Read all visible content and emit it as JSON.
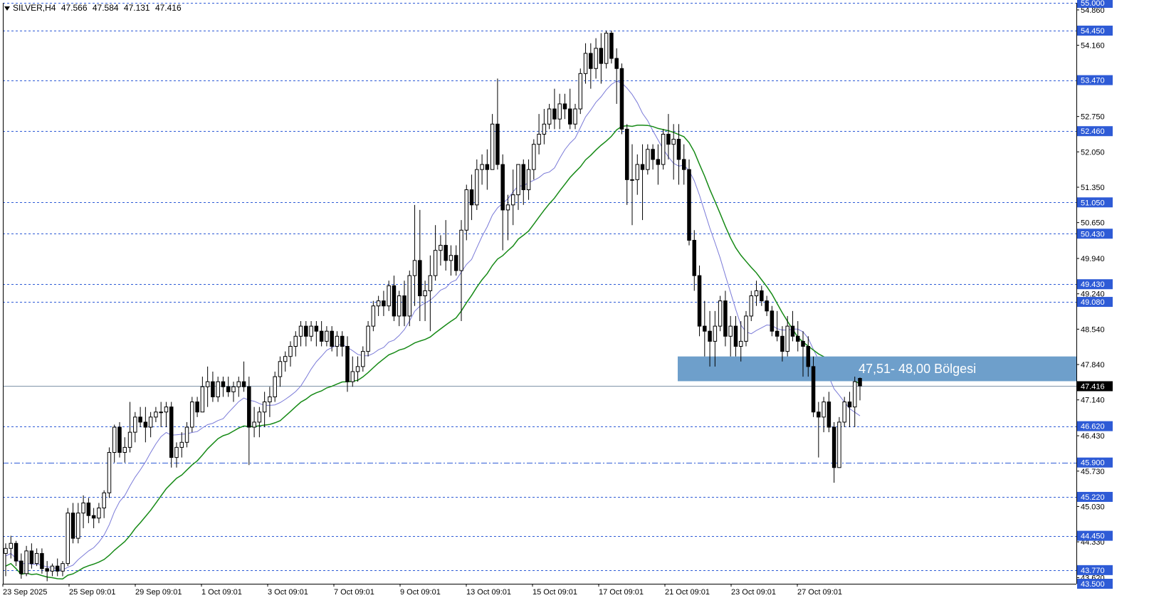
{
  "header": {
    "symbol": "SILVER,H4",
    "open": "47.566",
    "high": "47.584",
    "low": "47.131",
    "close": "47.416"
  },
  "colors": {
    "grid": "#2e5bd6",
    "axis_line": "#000000",
    "candle_up_fill": "#ffffff",
    "candle_down_fill": "#000000",
    "ma_fast": "#7b7bd8",
    "ma_slow": "#168a16",
    "zone_fill": "#6e9fcb",
    "zone_text": "#ffffff",
    "level_label_bg": "#2e5bd6",
    "price_label_bg": "#000000"
  },
  "chart_data": {
    "type": "candlestick",
    "symbol": "SILVER",
    "timeframe": "H4",
    "ylim": [
      43.5,
      55.0
    ],
    "y_ticks": [
      "54.860",
      "54.160",
      "53.470",
      "52.750",
      "52.050",
      "51.350",
      "50.650",
      "49.940",
      "49.240",
      "48.540",
      "47.840",
      "47.140",
      "46.430",
      "45.730",
      "45.030",
      "44.330",
      "43.620"
    ],
    "x_ticks": [
      "23 Sep 2025",
      "25 Sep 09:01",
      "29 Sep 09:01",
      "1 Oct 09:01",
      "3 Oct 09:01",
      "7 Oct 09:01",
      "9 Oct 09:01",
      "13 Oct 09:01",
      "15 Oct 09:01",
      "17 Oct 09:01",
      "21 Oct 09:01",
      "23 Oct 09:01",
      "27 Oct 09:01"
    ],
    "horizontal_levels": [
      {
        "value": 55.0,
        "label": "55.000",
        "style": "dashed"
      },
      {
        "value": 54.45,
        "label": "54.450",
        "style": "dashed"
      },
      {
        "value": 53.47,
        "label": "53.470",
        "style": "dashed"
      },
      {
        "value": 52.46,
        "label": "52.460",
        "style": "dashed"
      },
      {
        "value": 51.05,
        "label": "51.050",
        "style": "dashed"
      },
      {
        "value": 50.43,
        "label": "50.430",
        "style": "dashed"
      },
      {
        "value": 49.43,
        "label": "49.430",
        "style": "dashed"
      },
      {
        "value": 49.08,
        "label": "49.080",
        "style": "dashed"
      },
      {
        "value": 46.62,
        "label": "46.620",
        "style": "dashed"
      },
      {
        "value": 45.9,
        "label": "45.900",
        "style": "dashdot"
      },
      {
        "value": 45.22,
        "label": "45.220",
        "style": "dashed"
      },
      {
        "value": 44.45,
        "label": "44.450",
        "style": "dashed"
      },
      {
        "value": 43.77,
        "label": "43.770",
        "style": "dashed"
      },
      {
        "value": 43.5,
        "label": "43.500",
        "style": "dashed"
      }
    ],
    "current_price": {
      "value": 47.416,
      "label": "47.416"
    },
    "zone": {
      "low": 47.51,
      "high": 48.0,
      "label": "47,51- 48,00 Bölgesi"
    },
    "candles_ohlc": [
      [
        44.1,
        44.3,
        43.65,
        44.2
      ],
      [
        44.2,
        44.45,
        44.0,
        44.3
      ],
      [
        44.3,
        44.35,
        43.85,
        43.95
      ],
      [
        43.95,
        44.1,
        43.6,
        43.7
      ],
      [
        43.7,
        44.25,
        43.65,
        44.15
      ],
      [
        44.15,
        44.3,
        43.8,
        43.9
      ],
      [
        43.9,
        44.2,
        43.85,
        44.1
      ],
      [
        44.1,
        44.2,
        43.7,
        43.8
      ],
      [
        43.8,
        43.95,
        43.55,
        43.75
      ],
      [
        43.75,
        43.9,
        43.65,
        43.85
      ],
      [
        43.85,
        44.0,
        43.65,
        43.75
      ],
      [
        43.75,
        43.95,
        43.65,
        43.9
      ],
      [
        43.9,
        45.0,
        43.85,
        44.9
      ],
      [
        44.9,
        45.1,
        44.3,
        44.4
      ],
      [
        44.4,
        45.1,
        44.3,
        44.9
      ],
      [
        44.9,
        45.25,
        44.6,
        45.1
      ],
      [
        45.1,
        45.2,
        44.7,
        44.85
      ],
      [
        44.85,
        45.0,
        44.6,
        44.8
      ],
      [
        44.8,
        45.1,
        44.7,
        45.0
      ],
      [
        45.0,
        45.35,
        44.8,
        45.3
      ],
      [
        45.3,
        46.2,
        45.2,
        46.1
      ],
      [
        46.1,
        46.65,
        45.9,
        46.6
      ],
      [
        46.6,
        46.7,
        46.0,
        46.1
      ],
      [
        46.1,
        46.4,
        45.9,
        46.2
      ],
      [
        46.2,
        47.1,
        46.1,
        46.5
      ],
      [
        46.5,
        46.9,
        46.3,
        46.8
      ],
      [
        46.8,
        47.0,
        46.6,
        46.7
      ],
      [
        46.7,
        47.0,
        46.3,
        46.6
      ],
      [
        46.6,
        46.9,
        46.4,
        46.8
      ],
      [
        46.8,
        47.0,
        46.7,
        46.9
      ],
      [
        46.9,
        47.1,
        46.6,
        46.9
      ],
      [
        46.9,
        47.1,
        46.6,
        47.0
      ],
      [
        47.0,
        47.1,
        45.8,
        46.0
      ],
      [
        46.0,
        46.3,
        45.8,
        46.2
      ],
      [
        46.2,
        46.5,
        46.0,
        46.3
      ],
      [
        46.3,
        46.7,
        46.2,
        46.6
      ],
      [
        46.6,
        47.2,
        46.5,
        47.1
      ],
      [
        47.1,
        47.2,
        46.8,
        46.9
      ],
      [
        46.9,
        47.6,
        46.9,
        47.4
      ],
      [
        47.4,
        47.8,
        47.0,
        47.5
      ],
      [
        47.5,
        47.7,
        47.1,
        47.2
      ],
      [
        47.2,
        47.6,
        47.1,
        47.5
      ],
      [
        47.5,
        47.6,
        47.2,
        47.4
      ],
      [
        47.4,
        47.6,
        47.2,
        47.3
      ],
      [
        47.3,
        47.5,
        47.1,
        47.4
      ],
      [
        47.4,
        47.6,
        47.2,
        47.5
      ],
      [
        47.5,
        47.9,
        47.3,
        47.4
      ],
      [
        47.4,
        47.6,
        45.85,
        46.6
      ],
      [
        46.6,
        47.0,
        46.4,
        46.7
      ],
      [
        46.7,
        47.0,
        46.4,
        46.9
      ],
      [
        46.9,
        47.3,
        46.6,
        47.1
      ],
      [
        47.1,
        47.4,
        46.8,
        47.2
      ],
      [
        47.2,
        47.7,
        47.1,
        47.6
      ],
      [
        47.6,
        48.0,
        47.4,
        47.9
      ],
      [
        47.9,
        48.1,
        47.7,
        48.0
      ],
      [
        48.0,
        48.3,
        47.8,
        48.2
      ],
      [
        48.2,
        48.5,
        48.0,
        48.4
      ],
      [
        48.4,
        48.7,
        48.2,
        48.6
      ],
      [
        48.6,
        48.7,
        48.2,
        48.4
      ],
      [
        48.4,
        48.7,
        48.3,
        48.6
      ],
      [
        48.6,
        48.7,
        48.2,
        48.5
      ],
      [
        48.5,
        48.7,
        48.2,
        48.3
      ],
      [
        48.3,
        48.6,
        48.2,
        48.5
      ],
      [
        48.5,
        48.6,
        48.1,
        48.2
      ],
      [
        48.2,
        48.5,
        48.0,
        48.4
      ],
      [
        48.4,
        48.5,
        48.0,
        48.2
      ],
      [
        48.2,
        48.4,
        47.3,
        47.5
      ],
      [
        47.5,
        48.0,
        47.4,
        47.7
      ],
      [
        47.7,
        48.0,
        47.5,
        47.8
      ],
      [
        47.8,
        48.2,
        47.7,
        48.1
      ],
      [
        48.1,
        48.7,
        48.0,
        48.6
      ],
      [
        48.6,
        49.1,
        48.5,
        49.0
      ],
      [
        49.0,
        49.2,
        48.8,
        49.1
      ],
      [
        49.1,
        49.3,
        48.8,
        49.0
      ],
      [
        49.0,
        49.5,
        48.9,
        49.4
      ],
      [
        49.4,
        49.6,
        48.7,
        48.8
      ],
      [
        48.8,
        49.3,
        48.6,
        49.2
      ],
      [
        49.2,
        49.5,
        48.6,
        48.8
      ],
      [
        48.8,
        49.7,
        48.6,
        49.6
      ],
      [
        49.6,
        51.0,
        49.0,
        49.9
      ],
      [
        49.9,
        50.9,
        48.7,
        49.2
      ],
      [
        49.2,
        49.5,
        48.7,
        49.3
      ],
      [
        49.3,
        50.0,
        48.5,
        49.6
      ],
      [
        49.6,
        50.6,
        49.5,
        50.1
      ],
      [
        50.1,
        50.4,
        49.8,
        50.2
      ],
      [
        50.2,
        50.7,
        49.7,
        49.9
      ],
      [
        49.9,
        50.2,
        49.6,
        50.0
      ],
      [
        50.0,
        50.2,
        49.6,
        49.7
      ],
      [
        49.7,
        50.7,
        48.7,
        50.5
      ],
      [
        50.5,
        51.4,
        50.3,
        51.3
      ],
      [
        51.3,
        51.6,
        50.7,
        51.0
      ],
      [
        51.0,
        51.9,
        50.9,
        51.7
      ],
      [
        51.7,
        52.0,
        51.4,
        51.8
      ],
      [
        51.8,
        52.1,
        51.3,
        51.7
      ],
      [
        51.7,
        52.8,
        51.7,
        52.6
      ],
      [
        52.6,
        53.5,
        51.7,
        51.8
      ],
      [
        51.8,
        52.0,
        50.1,
        50.9
      ],
      [
        50.9,
        51.2,
        50.3,
        51.0
      ],
      [
        51.0,
        51.7,
        50.6,
        51.2
      ],
      [
        51.2,
        51.8,
        50.9,
        51.8
      ],
      [
        51.8,
        51.9,
        51.0,
        51.3
      ],
      [
        51.3,
        51.9,
        51.1,
        51.7
      ],
      [
        51.7,
        52.3,
        51.5,
        52.2
      ],
      [
        52.2,
        52.8,
        52.0,
        52.4
      ],
      [
        52.4,
        52.9,
        52.2,
        52.6
      ],
      [
        52.6,
        53.0,
        52.5,
        52.9
      ],
      [
        52.9,
        53.3,
        52.5,
        52.7
      ],
      [
        52.7,
        53.2,
        52.5,
        53.0
      ],
      [
        53.0,
        53.2,
        52.7,
        52.9
      ],
      [
        52.9,
        53.3,
        52.5,
        52.6
      ],
      [
        52.6,
        53.0,
        52.5,
        52.9
      ],
      [
        52.9,
        53.7,
        52.8,
        53.6
      ],
      [
        53.6,
        54.2,
        53.4,
        54.0
      ],
      [
        54.0,
        54.2,
        53.3,
        53.7
      ],
      [
        53.7,
        54.3,
        53.5,
        54.1
      ],
      [
        54.1,
        54.4,
        53.4,
        53.8
      ],
      [
        53.8,
        54.45,
        53.7,
        54.4
      ],
      [
        54.4,
        54.45,
        53.8,
        53.9
      ],
      [
        53.9,
        54.1,
        53.0,
        53.7
      ],
      [
        53.7,
        53.8,
        52.4,
        52.5
      ],
      [
        52.5,
        52.6,
        51.0,
        51.5
      ],
      [
        51.5,
        52.2,
        50.6,
        51.5
      ],
      [
        51.5,
        52.0,
        51.2,
        51.8
      ],
      [
        51.8,
        52.2,
        50.7,
        51.7
      ],
      [
        51.7,
        52.2,
        51.6,
        52.1
      ],
      [
        52.1,
        52.2,
        51.7,
        51.9
      ],
      [
        51.9,
        52.2,
        51.4,
        51.8
      ],
      [
        51.8,
        52.5,
        51.7,
        52.4
      ],
      [
        52.4,
        52.8,
        51.9,
        52.2
      ],
      [
        52.2,
        52.6,
        51.5,
        52.3
      ],
      [
        52.3,
        52.6,
        51.4,
        51.9
      ],
      [
        51.9,
        52.2,
        51.4,
        51.7
      ],
      [
        51.7,
        51.9,
        50.2,
        50.3
      ],
      [
        50.3,
        50.5,
        49.3,
        49.6
      ],
      [
        49.6,
        49.8,
        48.4,
        48.6
      ],
      [
        48.6,
        49.1,
        48.0,
        48.5
      ],
      [
        48.5,
        48.9,
        47.8,
        48.3
      ],
      [
        48.3,
        48.9,
        47.8,
        48.6
      ],
      [
        48.6,
        49.2,
        48.5,
        49.1
      ],
      [
        49.1,
        49.3,
        48.2,
        48.4
      ],
      [
        48.4,
        48.8,
        48.0,
        48.6
      ],
      [
        48.6,
        48.8,
        48.0,
        48.2
      ],
      [
        48.2,
        48.7,
        47.9,
        48.3
      ],
      [
        48.3,
        48.9,
        48.2,
        48.8
      ],
      [
        48.8,
        49.3,
        48.7,
        49.2
      ],
      [
        49.2,
        49.5,
        49.0,
        49.3
      ],
      [
        49.3,
        49.4,
        49.0,
        49.1
      ],
      [
        49.1,
        49.2,
        48.8,
        48.9
      ],
      [
        48.9,
        49.0,
        48.4,
        48.5
      ],
      [
        48.5,
        48.9,
        48.3,
        48.4
      ],
      [
        48.4,
        48.6,
        47.9,
        48.1
      ],
      [
        48.1,
        48.8,
        48.0,
        48.6
      ],
      [
        48.6,
        48.9,
        48.3,
        48.4
      ],
      [
        48.4,
        48.7,
        48.1,
        48.3
      ],
      [
        48.3,
        48.5,
        47.6,
        48.2
      ],
      [
        48.2,
        48.4,
        47.6,
        47.8
      ],
      [
        47.8,
        48.0,
        46.8,
        46.9
      ],
      [
        46.9,
        47.1,
        46.0,
        46.8
      ],
      [
        46.8,
        47.2,
        46.5,
        47.1
      ],
      [
        47.1,
        47.3,
        46.5,
        46.6
      ],
      [
        46.6,
        46.7,
        45.5,
        45.8
      ],
      [
        45.8,
        46.8,
        45.8,
        46.7
      ],
      [
        46.7,
        47.2,
        46.6,
        47.1
      ],
      [
        47.1,
        47.3,
        46.6,
        47.0
      ],
      [
        47.0,
        47.6,
        46.6,
        47.5
      ],
      [
        47.566,
        47.584,
        47.131,
        47.416
      ]
    ]
  }
}
